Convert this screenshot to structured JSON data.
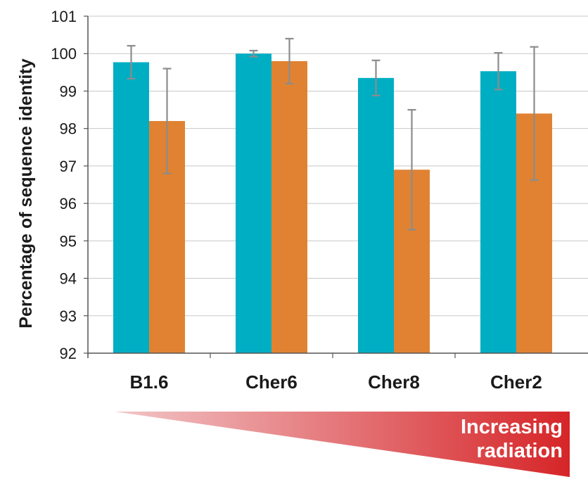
{
  "chart_data": {
    "type": "bar",
    "ylabel": "Percentage of sequence identity",
    "ylim": [
      92,
      101
    ],
    "yticks": [
      92,
      93,
      94,
      95,
      96,
      97,
      98,
      99,
      100,
      101
    ],
    "grid": true,
    "categories": [
      "B1.6",
      "Cher6",
      "Cher8",
      "Cher2"
    ],
    "series": [
      {
        "color": "#00AEC3",
        "values": [
          99.77,
          100.0,
          99.35,
          99.53
        ],
        "error": [
          0.44,
          0.08,
          0.47,
          0.49
        ]
      },
      {
        "color": "#E08232",
        "values": [
          98.2,
          99.8,
          96.9,
          98.4
        ],
        "error": [
          1.4,
          0.6,
          1.6,
          1.78
        ]
      }
    ],
    "error_bar_color": "#8c8c8c",
    "annotation": {
      "lines": [
        "Increasing",
        "radiation"
      ],
      "gradient_from": "#F2C6C8",
      "gradient_to": "#D62528"
    }
  }
}
